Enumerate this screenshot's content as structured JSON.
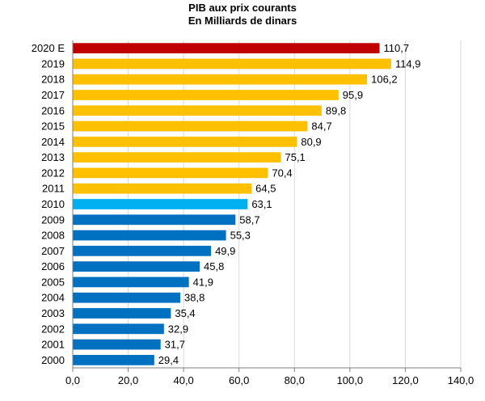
{
  "chart_data": {
    "type": "bar",
    "orientation": "horizontal",
    "title": "PIB aux prix courants",
    "subtitle": "En Milliards de dinars",
    "categories": [
      "2020 E",
      "2019",
      "2018",
      "2017",
      "2016",
      "2015",
      "2014",
      "2013",
      "2012",
      "2011",
      "2010",
      "2009",
      "2008",
      "2007",
      "2006",
      "2005",
      "2004",
      "2003",
      "2002",
      "2001",
      "2000"
    ],
    "values": [
      110.7,
      114.9,
      106.2,
      95.9,
      89.8,
      84.7,
      80.9,
      75.1,
      70.4,
      64.5,
      63.1,
      58.7,
      55.3,
      49.9,
      45.8,
      41.9,
      38.8,
      35.4,
      32.9,
      31.7,
      29.4
    ],
    "value_labels": [
      "110,7",
      "114,9",
      "106,2",
      "95,9",
      "89,8",
      "84,7",
      "80,9",
      "75,1",
      "70,4",
      "64,5",
      "63,1",
      "58,7",
      "55,3",
      "49,9",
      "45,8",
      "41,9",
      "38,8",
      "35,4",
      "32,9",
      "31,7",
      "29,4"
    ],
    "bar_colors": [
      "#c00000",
      "#ffc000",
      "#ffc000",
      "#ffc000",
      "#ffc000",
      "#ffc000",
      "#ffc000",
      "#ffc000",
      "#ffc000",
      "#ffc000",
      "#00b0f0",
      "#0070c0",
      "#0070c0",
      "#0070c0",
      "#0070c0",
      "#0070c0",
      "#0070c0",
      "#0070c0",
      "#0070c0",
      "#0070c0",
      "#0070c0"
    ],
    "x_ticks": [
      "0,0",
      "20,0",
      "40,0",
      "60,0",
      "80,0",
      "100,0",
      "120,0",
      "140,0"
    ],
    "xlim": [
      0,
      140
    ],
    "xlabel": "",
    "ylabel": "",
    "grid": "vertical",
    "legend": "none",
    "colors": {
      "grid": "#d9d9d9",
      "axis": "#7f7f7f",
      "text": "#000000"
    }
  }
}
